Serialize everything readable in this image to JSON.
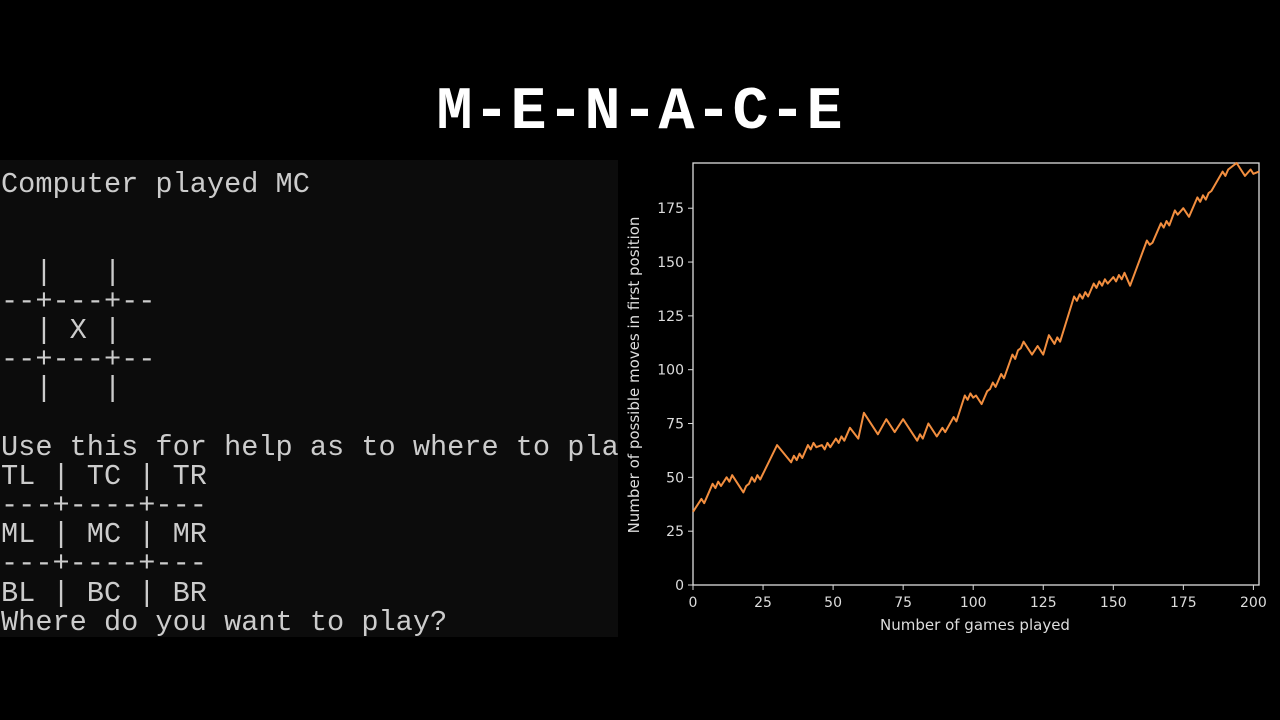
{
  "title": "M-E-N-A-C-E",
  "terminal": {
    "lines": [
      "Computer played MC",
      "",
      "",
      "  |   |",
      "--+---+--",
      "  | X |",
      "--+---+--",
      "  |   |",
      "",
      "Use this for help as to where to pla",
      "TL | TC | TR",
      "---+----+---",
      "ML | MC | MR",
      "---+----+---",
      "BL | BC | BR",
      "Where do you want to play?"
    ]
  },
  "chart_data": {
    "type": "line",
    "xlabel": "Number of games played",
    "ylabel": "Number of possible moves in first position",
    "xlim": [
      0,
      202
    ],
    "ylim": [
      0,
      196
    ],
    "xticks": [
      0,
      25,
      50,
      75,
      100,
      125,
      150,
      175,
      200
    ],
    "yticks": [
      0,
      25,
      50,
      75,
      100,
      125,
      150,
      175
    ],
    "grid": false,
    "line_color": "#f28e3f",
    "background": "#000000",
    "x": [
      0,
      3,
      4,
      7,
      8,
      9,
      10,
      12,
      13,
      14,
      18,
      19,
      20,
      21,
      22,
      23,
      24,
      30,
      35,
      36,
      37,
      38,
      39,
      41,
      42,
      43,
      44,
      46,
      47,
      48,
      49,
      51,
      52,
      53,
      54,
      56,
      59,
      61,
      66,
      69,
      72,
      75,
      80,
      81,
      82,
      84,
      87,
      89,
      90,
      93,
      94,
      97,
      98,
      99,
      100,
      101,
      103,
      105,
      106,
      107,
      108,
      110,
      111,
      114,
      115,
      116,
      117,
      118,
      121,
      123,
      125,
      127,
      129,
      130,
      131,
      136,
      137,
      138,
      139,
      140,
      141,
      143,
      144,
      145,
      146,
      147,
      148,
      150,
      151,
      152,
      153,
      154,
      156,
      162,
      163,
      164,
      167,
      168,
      169,
      170,
      172,
      173,
      175,
      177,
      180,
      181,
      182,
      183,
      184,
      185,
      189,
      190,
      191,
      194,
      197,
      199,
      200,
      202
    ],
    "y": [
      34,
      40,
      38,
      47,
      45,
      48,
      46,
      50,
      48,
      51,
      43,
      46,
      47,
      50,
      48,
      51,
      49,
      65,
      57,
      60,
      58,
      61,
      59,
      65,
      63,
      66,
      64,
      65,
      63,
      66,
      64,
      68,
      66,
      69,
      67,
      73,
      68,
      80,
      70,
      77,
      71,
      77,
      67,
      70,
      68,
      75,
      69,
      73,
      71,
      78,
      76,
      88,
      86,
      89,
      87,
      88,
      84,
      90,
      91,
      94,
      92,
      98,
      96,
      107,
      105,
      109,
      110,
      113,
      107,
      111,
      107,
      116,
      112,
      115,
      113,
      134,
      132,
      135,
      133,
      136,
      134,
      140,
      138,
      141,
      139,
      142,
      140,
      143,
      141,
      144,
      142,
      145,
      139,
      160,
      158,
      159,
      168,
      166,
      169,
      167,
      174,
      172,
      175,
      171,
      180,
      178,
      181,
      179,
      182,
      183,
      192,
      190,
      193,
      196,
      190,
      193,
      191,
      192
    ]
  }
}
